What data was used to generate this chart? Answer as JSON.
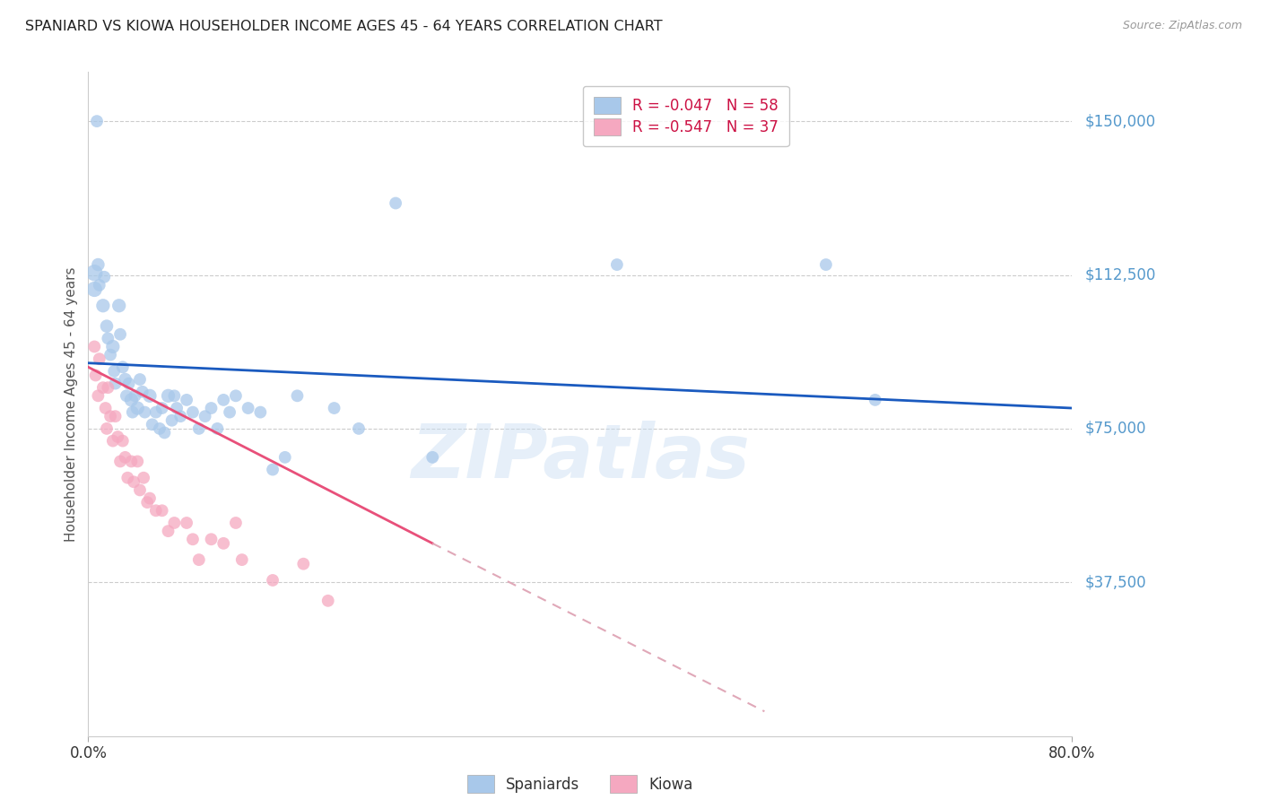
{
  "title": "SPANIARD VS KIOWA HOUSEHOLDER INCOME AGES 45 - 64 YEARS CORRELATION CHART",
  "source": "Source: ZipAtlas.com",
  "ylabel": "Householder Income Ages 45 - 64 years",
  "xlim": [
    0.0,
    0.8
  ],
  "ylim": [
    0,
    162000
  ],
  "watermark": "ZIPatlas",
  "spaniards_color": "#a8c8ea",
  "kiowa_color": "#f5a8c0",
  "trend_spaniards_color": "#1a5abf",
  "trend_kiowa_color": "#e8507a",
  "trend_kiowa_dashed_color": "#e0a8b8",
  "background_color": "#ffffff",
  "title_color": "#222222",
  "ytick_color": "#5599cc",
  "grid_color": "#cccccc",
  "ytick_values": [
    37500,
    75000,
    112500,
    150000
  ],
  "ytick_labels": [
    "$37,500",
    "$75,000",
    "$112,500",
    "$150,000"
  ],
  "spaniards_x": [
    0.005,
    0.005,
    0.007,
    0.008,
    0.009,
    0.012,
    0.013,
    0.015,
    0.016,
    0.018,
    0.02,
    0.021,
    0.022,
    0.025,
    0.026,
    0.028,
    0.03,
    0.031,
    0.033,
    0.035,
    0.036,
    0.038,
    0.04,
    0.042,
    0.044,
    0.046,
    0.05,
    0.052,
    0.055,
    0.058,
    0.06,
    0.062,
    0.065,
    0.068,
    0.07,
    0.072,
    0.075,
    0.08,
    0.085,
    0.09,
    0.095,
    0.1,
    0.105,
    0.11,
    0.115,
    0.12,
    0.13,
    0.14,
    0.15,
    0.16,
    0.17,
    0.2,
    0.22,
    0.25,
    0.28,
    0.43,
    0.6,
    0.64
  ],
  "spaniards_y": [
    113000,
    109000,
    150000,
    115000,
    110000,
    105000,
    112000,
    100000,
    97000,
    93000,
    95000,
    89000,
    86000,
    105000,
    98000,
    90000,
    87000,
    83000,
    86000,
    82000,
    79000,
    83000,
    80000,
    87000,
    84000,
    79000,
    83000,
    76000,
    79000,
    75000,
    80000,
    74000,
    83000,
    77000,
    83000,
    80000,
    78000,
    82000,
    79000,
    75000,
    78000,
    80000,
    75000,
    82000,
    79000,
    83000,
    80000,
    79000,
    65000,
    68000,
    83000,
    80000,
    75000,
    130000,
    68000,
    115000,
    115000,
    82000
  ],
  "spaniards_size": [
    80,
    70,
    45,
    50,
    45,
    55,
    45,
    50,
    45,
    45,
    55,
    45,
    45,
    55,
    45,
    45,
    50,
    45,
    45,
    55,
    45,
    45,
    55,
    45,
    45,
    45,
    55,
    45,
    45,
    45,
    45,
    45,
    55,
    45,
    45,
    45,
    45,
    45,
    45,
    45,
    45,
    45,
    45,
    45,
    45,
    45,
    45,
    45,
    45,
    45,
    45,
    45,
    45,
    45,
    45,
    45,
    45,
    45
  ],
  "kiowa_x": [
    0.005,
    0.006,
    0.008,
    0.009,
    0.012,
    0.014,
    0.015,
    0.016,
    0.018,
    0.02,
    0.022,
    0.024,
    0.026,
    0.028,
    0.03,
    0.032,
    0.035,
    0.037,
    0.04,
    0.042,
    0.045,
    0.048,
    0.05,
    0.055,
    0.06,
    0.065,
    0.07,
    0.08,
    0.085,
    0.09,
    0.1,
    0.11,
    0.12,
    0.125,
    0.15,
    0.175,
    0.195
  ],
  "kiowa_y": [
    95000,
    88000,
    83000,
    92000,
    85000,
    80000,
    75000,
    85000,
    78000,
    72000,
    78000,
    73000,
    67000,
    72000,
    68000,
    63000,
    67000,
    62000,
    67000,
    60000,
    63000,
    57000,
    58000,
    55000,
    55000,
    50000,
    52000,
    52000,
    48000,
    43000,
    48000,
    47000,
    52000,
    43000,
    38000,
    42000,
    33000
  ],
  "kiowa_size": [
    45,
    45,
    45,
    45,
    45,
    45,
    45,
    45,
    45,
    45,
    45,
    45,
    45,
    45,
    45,
    45,
    45,
    45,
    45,
    45,
    45,
    45,
    45,
    45,
    45,
    45,
    45,
    45,
    45,
    45,
    45,
    45,
    45,
    45,
    45,
    45,
    45
  ],
  "trend_s_x0": 0.0,
  "trend_s_x1": 0.8,
  "trend_s_y0": 91000,
  "trend_s_y1": 80000,
  "trend_k_solid_x0": 0.0,
  "trend_k_solid_x1": 0.28,
  "trend_k_solid_y0": 90000,
  "trend_k_solid_y1": 47000,
  "trend_k_dash_x0": 0.28,
  "trend_k_dash_x1": 0.55,
  "trend_k_dash_y0": 47000,
  "trend_k_dash_y1": 6000
}
